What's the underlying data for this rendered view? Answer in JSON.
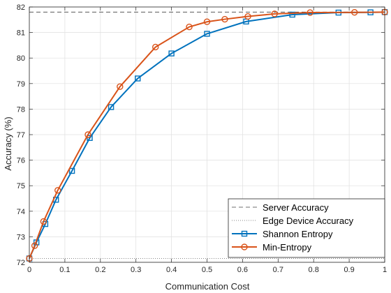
{
  "chart_data": {
    "type": "line",
    "title": "",
    "xlabel": "Communication Cost",
    "ylabel": "Accuracy (%)",
    "xlim": [
      0,
      1
    ],
    "ylim": [
      72,
      82
    ],
    "x_ticks": [
      "0",
      "0.1",
      "0.2",
      "0.3",
      "0.4",
      "0.5",
      "0.6",
      "0.7",
      "0.8",
      "0.9",
      "1"
    ],
    "y_ticks": [
      "72",
      "73",
      "74",
      "75",
      "76",
      "77",
      "78",
      "79",
      "80",
      "81",
      "82"
    ],
    "grid": true,
    "legend_position": "bottom-right",
    "reference_lines": [
      {
        "name": "Server Accuracy",
        "style": "dashed",
        "color": "#404040",
        "y": 81.8
      },
      {
        "name": "Edge Device Accuracy",
        "style": "dotted",
        "color": "#606060",
        "y": 72.15
      }
    ],
    "series": [
      {
        "name": "Shannon Entropy",
        "color": "#0072bd",
        "marker": "square",
        "x": [
          0.0,
          0.02,
          0.045,
          0.075,
          0.12,
          0.17,
          0.23,
          0.305,
          0.4,
          0.5,
          0.61,
          0.74,
          0.87,
          0.96,
          1.0
        ],
        "y": [
          72.15,
          72.78,
          73.5,
          74.45,
          75.58,
          76.87,
          78.08,
          79.2,
          80.18,
          80.95,
          81.43,
          81.7,
          81.78,
          81.79,
          81.8
        ]
      },
      {
        "name": "Min-Entropy",
        "color": "#d95319",
        "marker": "circle",
        "x": [
          0.0,
          0.015,
          0.04,
          0.08,
          0.165,
          0.255,
          0.355,
          0.45,
          0.5,
          0.55,
          0.615,
          0.69,
          0.79,
          0.915,
          1.0
        ],
        "y": [
          72.15,
          72.65,
          73.6,
          74.82,
          77.0,
          78.88,
          80.43,
          81.22,
          81.42,
          81.52,
          81.63,
          81.73,
          81.78,
          81.79,
          81.8
        ]
      }
    ]
  }
}
